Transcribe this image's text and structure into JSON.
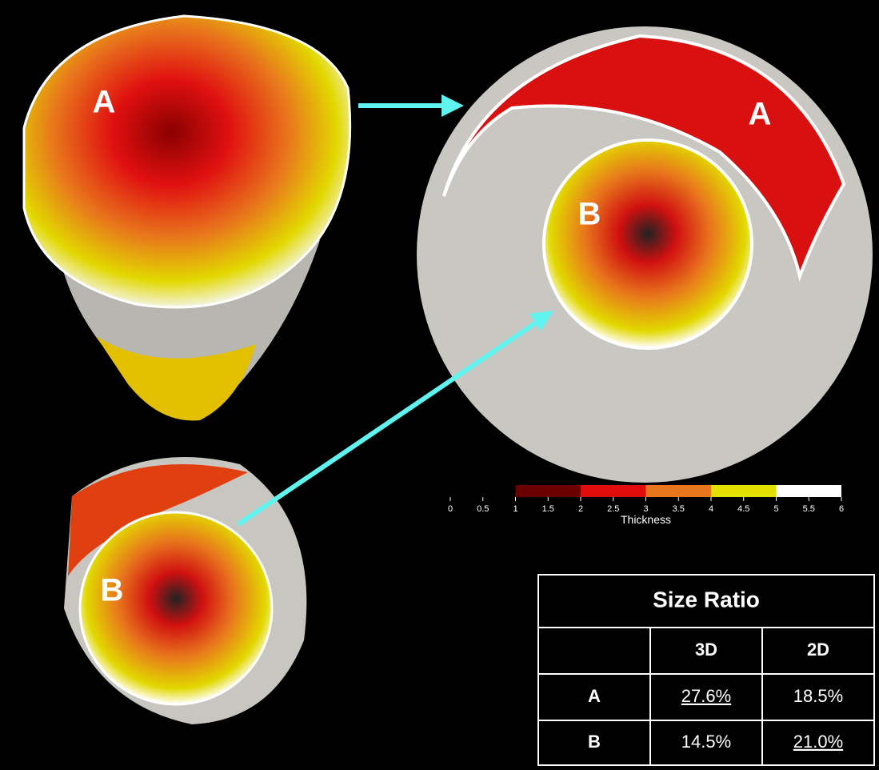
{
  "annotations": [
    "A",
    "A",
    "B",
    "B"
  ],
  "colorbar": {
    "title": "Thickness",
    "ticks": [
      0,
      0.5,
      1,
      1.5,
      2,
      2.5,
      3,
      3.5,
      4,
      4.5,
      5,
      5.5,
      6
    ],
    "min": 0,
    "max": 6,
    "bands": [
      {
        "from": 1,
        "to": 2,
        "color": "#6b0000"
      },
      {
        "from": 2,
        "to": 3,
        "color": "#e00d0d"
      },
      {
        "from": 3,
        "to": 4,
        "color": "#e8761c"
      },
      {
        "from": 4,
        "to": 5,
        "color": "#e2e000"
      },
      {
        "from": 5,
        "to": 6,
        "color": "#ffffff"
      }
    ]
  },
  "table": {
    "title": "Size Ratio",
    "columns": [
      "3D",
      "2D"
    ],
    "rows": [
      {
        "label": "A",
        "cells": [
          "27.6%",
          "18.5%"
        ],
        "underlined": [
          true,
          false
        ]
      },
      {
        "label": "B",
        "cells": [
          "14.5%",
          "21.0%"
        ],
        "underlined": [
          false,
          true
        ]
      }
    ]
  }
}
